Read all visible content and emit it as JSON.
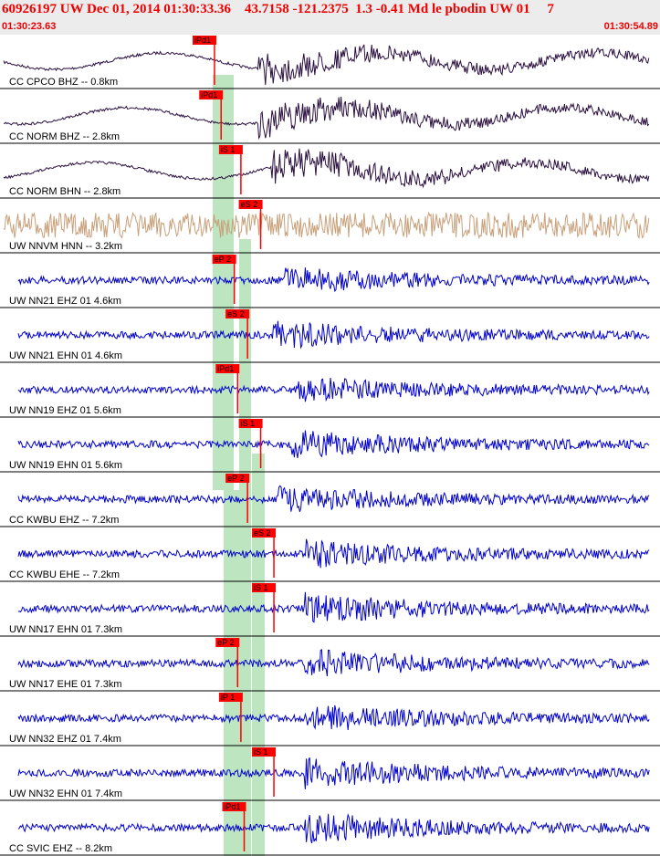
{
  "header": {
    "title": "60926197 UW Dec 01, 2014 01:30:33.36    43.7158 -121.2375  1.3 -0.41 Md le pbodin UW 01     7",
    "start_time": "01:30:23.63",
    "end_time": "01:30:54.89"
  },
  "colors": {
    "header_bg": "#ececec",
    "header_text": "#ee0000",
    "trace_dark": "#2b1040",
    "trace_tan": "#c8a07a",
    "trace_blue": "#0000cc",
    "pick": "#ff0000",
    "band": "#bde5c0"
  },
  "chart_data": {
    "type": "line",
    "time_range": [
      "01:30:23.63",
      "01:30:54.89"
    ],
    "green_bands": [
      "background model arrival bands (vertical)"
    ],
    "series": [
      {
        "name": "CC.CPCO.BHZ.--",
        "label": "CC CPCO BHZ -- 0.8km",
        "pick": "iPd1",
        "pick_frac": 0.325,
        "color": "dark",
        "amp": 0.55,
        "onset": 0.35,
        "flat": false
      },
      {
        "name": "CC.NORM.BHZ.--",
        "label": "CC NORM BHZ -- 2.8km",
        "pick": "iPd1",
        "pick_frac": 0.335,
        "color": "dark",
        "amp": 0.6,
        "onset": 0.35,
        "flat": false
      },
      {
        "name": "CC.NORM.BHN.--",
        "label": "CC NORM BHN -- 2.8km",
        "pick": "iS 1",
        "pick_frac": 0.365,
        "color": "dark",
        "amp": 0.6,
        "onset": 0.37,
        "flat": false
      },
      {
        "name": "UW.NNVM.HNN.--",
        "label": "UW NNVM HNN -- 3.2km",
        "pick": "eS 2",
        "pick_frac": 0.395,
        "color": "tan",
        "amp": 0.45,
        "onset": 0.4,
        "flat": true
      },
      {
        "name": "UW.NN21.EHZ.01",
        "label": "UW NN21 EHZ 01 4.6km",
        "pick": "eP 2",
        "pick_frac": 0.355,
        "color": "blue",
        "amp": 0.45,
        "onset": 0.39,
        "flat": false
      },
      {
        "name": "UW.NN21.EHN.01",
        "label": "UW NN21 EHN 01 4.6km",
        "pick": "eS 2",
        "pick_frac": 0.375,
        "color": "blue",
        "amp": 0.5,
        "onset": 0.37,
        "flat": false
      },
      {
        "name": "UW.NN19.EHZ.01",
        "label": "UW NN19 EHZ 01 5.6km",
        "pick": "iPd1",
        "pick_frac": 0.36,
        "color": "blue",
        "amp": 0.45,
        "onset": 0.41,
        "flat": false
      },
      {
        "name": "UW.NN19.EHN.01",
        "label": "UW NN19 EHN 01 5.6km",
        "pick": "iS 1",
        "pick_frac": 0.395,
        "color": "blue",
        "amp": 0.5,
        "onset": 0.4,
        "flat": false
      },
      {
        "name": "CC.KWBU.EHZ.--",
        "label": "CC KWBU EHZ -- 7.2km",
        "pick": "eP 2",
        "pick_frac": 0.375,
        "color": "blue",
        "amp": 0.45,
        "onset": 0.38,
        "flat": false
      },
      {
        "name": "CC.KWBU.EHE.--",
        "label": "CC KWBU EHE -- 7.2km",
        "pick": "eS 2",
        "pick_frac": 0.415,
        "color": "blue",
        "amp": 0.5,
        "onset": 0.42,
        "flat": false
      },
      {
        "name": "UW.NN17.EHN.01",
        "label": "UW NN17 EHN 01 7.3km",
        "pick": "iS 1",
        "pick_frac": 0.415,
        "color": "blue",
        "amp": 0.55,
        "onset": 0.42,
        "flat": false
      },
      {
        "name": "UW.NN17.EHE.01",
        "label": "UW NN17 EHE 01 7.3km",
        "pick": "eP 2",
        "pick_frac": 0.36,
        "color": "blue",
        "amp": 0.55,
        "onset": 0.42,
        "flat": false
      },
      {
        "name": "UW.NN32.EHZ.01",
        "label": "UW NN32 EHZ 01 7.4km",
        "pick": "iP 1",
        "pick_frac": 0.365,
        "color": "blue",
        "amp": 0.5,
        "onset": 0.42,
        "flat": false
      },
      {
        "name": "UW.NN32.EHN.01",
        "label": "UW NN32 EHN 01 7.4km",
        "pick": "iS 1",
        "pick_frac": 0.415,
        "color": "blue",
        "amp": 0.55,
        "onset": 0.42,
        "flat": false
      },
      {
        "name": "CC.SVIC.EHZ.--",
        "label": "CC SVIC EHZ -- 8.2km",
        "pick": "iPd1",
        "pick_frac": 0.37,
        "color": "blue",
        "amp": 0.55,
        "onset": 0.42,
        "flat": false
      }
    ]
  }
}
